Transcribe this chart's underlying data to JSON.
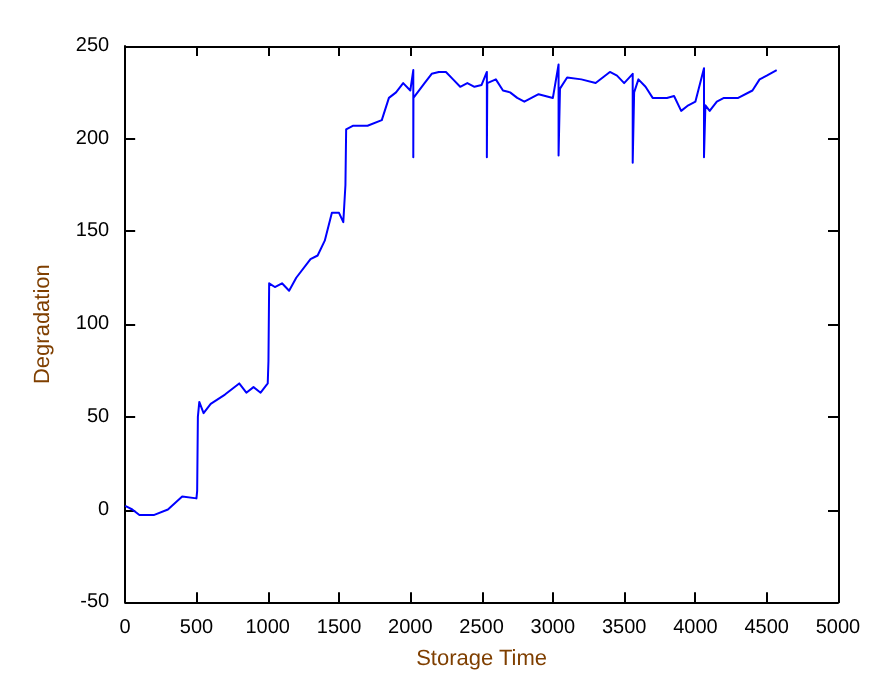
{
  "chart_data": {
    "type": "line",
    "xlabel": "Storage Time",
    "ylabel": "Degradation",
    "x": [
      0,
      50,
      100,
      200,
      300,
      400,
      500,
      505,
      510,
      520,
      550,
      600,
      700,
      800,
      850,
      900,
      950,
      1000,
      1005,
      1010,
      1050,
      1100,
      1150,
      1200,
      1300,
      1350,
      1400,
      1450,
      1500,
      1530,
      1545,
      1550,
      1600,
      1700,
      1800,
      1850,
      1900,
      1950,
      2000,
      2021,
      2021,
      2022,
      2100,
      2150,
      2200,
      2250,
      2300,
      2350,
      2400,
      2450,
      2500,
      2537,
      2537,
      2540,
      2600,
      2650,
      2700,
      2750,
      2800,
      2900,
      3000,
      3040,
      3040,
      3050,
      3100,
      3200,
      3300,
      3400,
      3450,
      3500,
      3560,
      3560,
      3570,
      3600,
      3650,
      3700,
      3800,
      3850,
      3900,
      3950,
      4000,
      4060,
      4060,
      4070,
      4100,
      4150,
      4200,
      4300,
      4400,
      4450,
      4500,
      4570
    ],
    "series": [
      {
        "color": "#0000ff",
        "values": [
          2,
          0,
          -3,
          -3,
          0,
          7,
          6,
          10,
          50,
          58,
          52,
          57,
          62,
          68,
          63,
          66,
          63,
          68,
          80,
          122,
          120,
          122,
          118,
          125,
          135,
          137,
          145,
          160,
          160,
          155,
          175,
          205,
          207,
          207,
          210,
          222,
          225,
          230,
          226,
          237,
          190,
          222,
          230,
          235,
          236,
          236,
          232,
          228,
          230,
          228,
          229,
          236,
          190,
          230,
          232,
          226,
          225,
          222,
          220,
          224,
          222,
          240,
          191,
          227,
          233,
          232,
          230,
          236,
          234,
          230,
          235,
          187,
          225,
          232,
          228,
          222,
          222,
          223,
          215,
          218,
          220,
          238,
          190,
          218,
          215,
          220,
          222,
          222,
          226,
          232,
          234,
          237
        ]
      }
    ],
    "xlim": [
      0,
      5000
    ],
    "xticks": [
      0,
      500,
      1000,
      1500,
      2000,
      2500,
      3000,
      3500,
      4000,
      4500,
      5000
    ],
    "ylim": [
      -50,
      250
    ],
    "yticks": [
      -50,
      0,
      50,
      100,
      150,
      200,
      250
    ],
    "grid": false,
    "marker": "none",
    "line_style": "solid"
  }
}
